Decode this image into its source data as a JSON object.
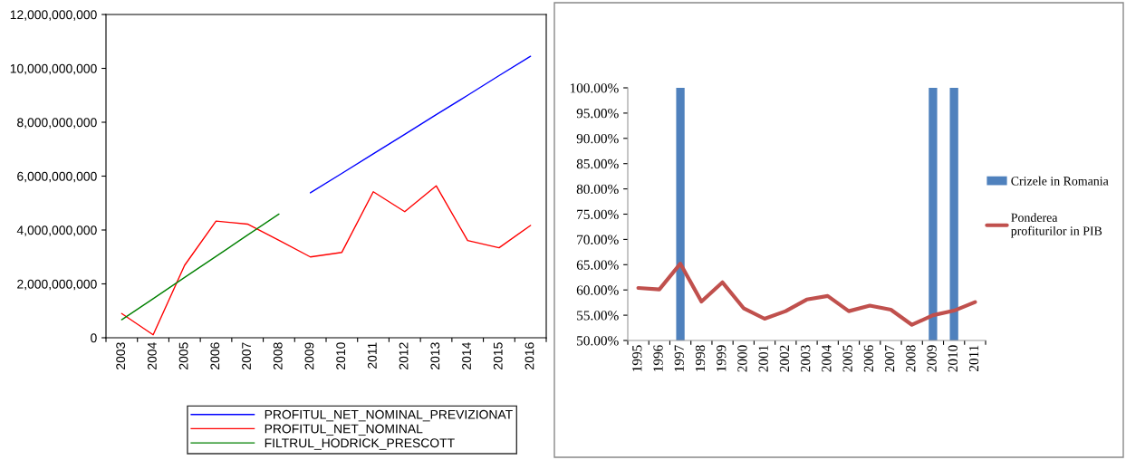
{
  "chart_data": [
    {
      "type": "line",
      "categories": [
        "2003",
        "2004",
        "2005",
        "2006",
        "2007",
        "2008",
        "2009",
        "2010",
        "2011",
        "2012",
        "2013",
        "2014",
        "2015",
        "2016"
      ],
      "series": [
        {
          "name": "PROFITUL_NET_NOMINAL_PREVIZIONAT",
          "color": "#0000ff",
          "values": [
            null,
            null,
            null,
            null,
            null,
            null,
            5380000000,
            6100000000,
            6830000000,
            7550000000,
            8280000000,
            9000000000,
            9730000000,
            10450000000
          ]
        },
        {
          "name": "PROFITUL_NET_NOMINAL",
          "color": "#ff0000",
          "values": [
            900000000,
            110000000,
            2690000000,
            4330000000,
            4220000000,
            3620000000,
            3000000000,
            3170000000,
            5420000000,
            4680000000,
            5640000000,
            3610000000,
            3340000000,
            4170000000
          ]
        },
        {
          "name": "FILTRUL_HODRICK_PRESCOTT",
          "color": "#008000",
          "values": [
            670000000,
            1450000000,
            2240000000,
            3020000000,
            3810000000,
            4590000000,
            null,
            null,
            null,
            null,
            null,
            null,
            null,
            null
          ]
        }
      ],
      "ylim": [
        0,
        12000000000
      ],
      "yticks": [
        {
          "value": 0,
          "label": "0"
        },
        {
          "value": 2000000000,
          "label": "2,000,000,000"
        },
        {
          "value": 4000000000,
          "label": "4,000,000,000"
        },
        {
          "value": 6000000000,
          "label": "6,000,000,000"
        },
        {
          "value": 8000000000,
          "label": "8,000,000,000"
        },
        {
          "value": 10000000000,
          "label": "10,000,000,000"
        },
        {
          "value": 12000000000,
          "label": "12,000,000,000"
        }
      ],
      "legend": "bottom",
      "grid": false
    },
    {
      "type": "bar",
      "categories": [
        "1995",
        "1996",
        "1997",
        "1998",
        "1999",
        "2000",
        "2001",
        "2002",
        "2003",
        "2004",
        "2005",
        "2006",
        "2007",
        "2008",
        "2009",
        "2010",
        "2011"
      ],
      "series": [
        {
          "name": "Crizele in Romania",
          "color": "#4f81bd",
          "values": [
            null,
            null,
            100,
            null,
            null,
            null,
            null,
            null,
            null,
            null,
            null,
            null,
            null,
            null,
            100,
            100,
            null
          ]
        },
        {
          "name": "Ponderea profiturilor in PIB",
          "type": "line",
          "color": "#c0504d",
          "values": [
            60.4,
            60.1,
            65.2,
            57.7,
            61.5,
            56.4,
            54.3,
            55.8,
            58.1,
            58.8,
            55.8,
            56.9,
            56.1,
            53.1,
            55.0,
            55.9,
            57.6
          ]
        }
      ],
      "ylim": [
        50,
        100
      ],
      "yticks": [
        {
          "value": 50,
          "label": "50.00%"
        },
        {
          "value": 55,
          "label": "55.00%"
        },
        {
          "value": 60,
          "label": "60.00%"
        },
        {
          "value": 65,
          "label": "65.00%"
        },
        {
          "value": 70,
          "label": "70.00%"
        },
        {
          "value": 75,
          "label": "75.00%"
        },
        {
          "value": 80,
          "label": "80.00%"
        },
        {
          "value": 85,
          "label": "85.00%"
        },
        {
          "value": 90,
          "label": "90.00%"
        },
        {
          "value": 95,
          "label": "95.00%"
        },
        {
          "value": 100,
          "label": "100.00%"
        }
      ],
      "legend": "right",
      "grid": false
    }
  ]
}
